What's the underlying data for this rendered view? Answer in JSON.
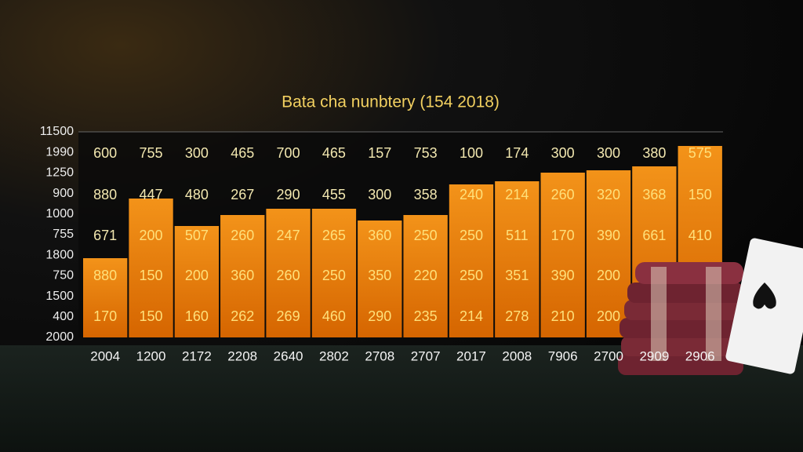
{
  "title": "Bata cha nunbtery (154 2018)",
  "y_labels": [
    "11500",
    "1990",
    "1250",
    "900",
    "1000",
    "755",
    "1800",
    "750",
    "1500",
    "400",
    "2000"
  ],
  "x_labels": [
    "2004",
    "1200",
    "2172",
    "2208",
    "2640",
    "2802",
    "2708",
    "2707",
    "2017",
    "2008",
    "7906",
    "2700",
    "2909",
    "2906"
  ],
  "table": {
    "rows": [
      [
        600,
        755,
        300,
        465,
        700,
        465,
        157,
        753,
        100,
        174,
        300,
        300,
        380,
        575
      ],
      [
        880,
        447,
        480,
        267,
        290,
        455,
        300,
        358,
        240,
        214,
        260,
        320,
        368,
        150
      ],
      [
        671,
        200,
        507,
        260,
        247,
        265,
        360,
        250,
        250,
        511,
        170,
        390,
        661,
        410
      ],
      [
        880,
        150,
        200,
        360,
        260,
        250,
        350,
        220,
        250,
        351,
        390,
        200,
        null,
        null
      ],
      [
        170,
        150,
        160,
        262,
        269,
        460,
        290,
        235,
        214,
        278,
        210,
        200,
        null,
        null
      ]
    ]
  }
}
